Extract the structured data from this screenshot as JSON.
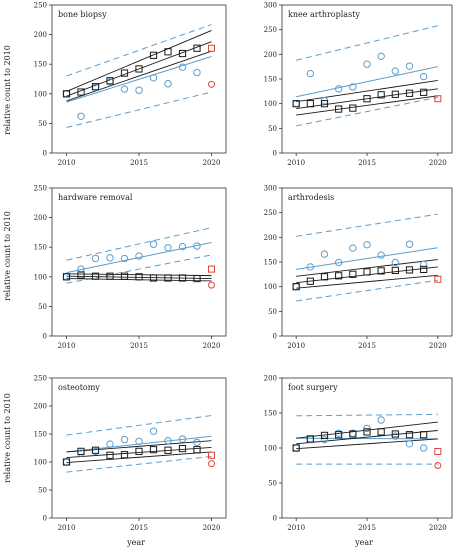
{
  "figure": {
    "ylabel": "relative count to 2010",
    "xlabel": "year"
  },
  "colors": {
    "black_series": "#1a1a1a",
    "blue_series": "#5a9ed0",
    "red_points": "#e0453c",
    "axis": "#333333"
  },
  "chart_data": [
    {
      "type": "scatter",
      "title": "bone biopsy",
      "xlim": [
        2009,
        2021
      ],
      "ylim": [
        0,
        250
      ],
      "xticks": [
        2010,
        2015,
        2020
      ],
      "yticks": [
        0,
        50,
        100,
        150,
        200,
        250
      ],
      "black_points": {
        "x": [
          2010,
          2011,
          2012,
          2013,
          2014,
          2015,
          2016,
          2017,
          2018,
          2019
        ],
        "y": [
          100,
          103,
          112,
          122,
          135,
          142,
          165,
          171,
          168,
          177
        ]
      },
      "black_fit": {
        "x": [
          2010,
          2020
        ],
        "y": [
          96,
          188
        ]
      },
      "black_ci": {
        "x": [
          2010,
          2020
        ],
        "lower": [
          88,
          172
        ],
        "upper": [
          104,
          207
        ]
      },
      "blue_points": {
        "x": [
          2010,
          2011,
          2012,
          2013,
          2014,
          2015,
          2016,
          2017,
          2018,
          2019
        ],
        "y": [
          100,
          62,
          111,
          120,
          108,
          106,
          127,
          117,
          145,
          136
        ]
      },
      "blue_fit": {
        "x": [
          2010,
          2020
        ],
        "y": [
          86,
          163
        ]
      },
      "blue_pi": {
        "x": [
          2010,
          2020
        ],
        "lower": [
          43,
          103
        ],
        "upper": [
          130,
          217
        ]
      },
      "red_points": {
        "x": [
          2020,
          2020
        ],
        "y": [
          177,
          116
        ]
      }
    },
    {
      "type": "scatter",
      "title": "knee arthroplasty",
      "xlim": [
        2009,
        2021
      ],
      "ylim": [
        0,
        300
      ],
      "xticks": [
        2010,
        2015,
        2020
      ],
      "yticks": [
        0,
        50,
        100,
        150,
        200,
        250,
        300
      ],
      "black_points": {
        "x": [
          2010,
          2011,
          2012,
          2013,
          2014,
          2015,
          2016,
          2017,
          2018,
          2019
        ],
        "y": [
          100,
          100,
          100,
          89,
          91,
          110,
          118,
          119,
          121,
          123
        ]
      },
      "black_fit": {
        "x": [
          2010,
          2020
        ],
        "y": [
          90,
          130
        ]
      },
      "black_ci": {
        "x": [
          2010,
          2020
        ],
        "lower": [
          77,
          116
        ],
        "upper": [
          104,
          147
        ]
      },
      "blue_points": {
        "x": [
          2010,
          2011,
          2012,
          2013,
          2014,
          2015,
          2016,
          2017,
          2018,
          2019
        ],
        "y": [
          100,
          161,
          106,
          130,
          134,
          180,
          196,
          166,
          176,
          155
        ]
      },
      "blue_fit": {
        "x": [
          2010,
          2020
        ],
        "y": [
          114,
          175
        ]
      },
      "blue_pi": {
        "x": [
          2010,
          2020
        ],
        "lower": [
          55,
          113
        ],
        "upper": [
          188,
          258
        ]
      },
      "red_points": {
        "x": [
          2020
        ],
        "y": [
          110
        ]
      }
    },
    {
      "type": "scatter",
      "title": "hardware removal",
      "xlim": [
        2009,
        2021
      ],
      "ylim": [
        0,
        250
      ],
      "xticks": [
        2010,
        2015,
        2020
      ],
      "yticks": [
        0,
        50,
        100,
        150,
        200,
        250
      ],
      "black_points": {
        "x": [
          2010,
          2011,
          2012,
          2013,
          2014,
          2015,
          2016,
          2017,
          2018,
          2019
        ],
        "y": [
          100,
          103,
          101,
          101,
          101,
          100,
          98,
          98,
          98,
          97
        ]
      },
      "black_fit": {
        "x": [
          2010,
          2020
        ],
        "y": [
          101,
          97
        ]
      },
      "black_ci": {
        "x": [
          2010,
          2020
        ],
        "lower": [
          97,
          93
        ],
        "upper": [
          105,
          102
        ]
      },
      "blue_points": {
        "x": [
          2010,
          2011,
          2012,
          2013,
          2014,
          2015,
          2016,
          2017,
          2018,
          2019
        ],
        "y": [
          100,
          113,
          131,
          132,
          131,
          135,
          155,
          149,
          151,
          152
        ]
      },
      "blue_fit": {
        "x": [
          2010,
          2020
        ],
        "y": [
          107,
          158
        ]
      },
      "blue_pi": {
        "x": [
          2010,
          2020
        ],
        "lower": [
          89,
          137
        ],
        "upper": [
          128,
          183
        ]
      },
      "red_points": {
        "x": [
          2020,
          2020
        ],
        "y": [
          113,
          86
        ]
      }
    },
    {
      "type": "scatter",
      "title": "arthrodesis",
      "xlim": [
        2009,
        2021
      ],
      "ylim": [
        0,
        300
      ],
      "xticks": [
        2010,
        2015,
        2020
      ],
      "yticks": [
        0,
        50,
        100,
        150,
        200,
        250,
        300
      ],
      "black_points": {
        "x": [
          2010,
          2011,
          2012,
          2013,
          2014,
          2015,
          2016,
          2017,
          2018,
          2019
        ],
        "y": [
          100,
          111,
          120,
          122,
          125,
          130,
          132,
          133,
          134,
          135
        ]
      },
      "black_fit": {
        "x": [
          2010,
          2020
        ],
        "y": [
          108,
          140
        ]
      },
      "black_ci": {
        "x": [
          2010,
          2020
        ],
        "lower": [
          97,
          123
        ],
        "upper": [
          121,
          155
        ]
      },
      "blue_points": {
        "x": [
          2010,
          2011,
          2012,
          2013,
          2014,
          2015,
          2016,
          2017,
          2018,
          2019
        ],
        "y": [
          100,
          140,
          166,
          149,
          178,
          185,
          164,
          149,
          186,
          145
        ]
      },
      "blue_fit": {
        "x": [
          2010,
          2020
        ],
        "y": [
          135,
          179
        ]
      },
      "blue_pi": {
        "x": [
          2010,
          2020
        ],
        "lower": [
          71,
          113
        ],
        "upper": [
          202,
          247
        ]
      },
      "red_points": {
        "x": [
          2020
        ],
        "y": [
          115
        ]
      }
    },
    {
      "type": "scatter",
      "title": "osteotomy",
      "xlim": [
        2009,
        2021
      ],
      "ylim": [
        0,
        250
      ],
      "xticks": [
        2010,
        2015,
        2020
      ],
      "yticks": [
        0,
        50,
        100,
        150,
        200,
        250
      ],
      "black_points": {
        "x": [
          2010,
          2011,
          2012,
          2013,
          2014,
          2015,
          2016,
          2017,
          2018,
          2019
        ],
        "y": [
          100,
          119,
          121,
          112,
          113,
          119,
          122,
          121,
          124,
          122
        ]
      },
      "black_fit": {
        "x": [
          2010,
          2020
        ],
        "y": [
          108,
          126
        ]
      },
      "black_ci": {
        "x": [
          2010,
          2020
        ],
        "lower": [
          99,
          118
        ],
        "upper": [
          118,
          138
        ]
      },
      "blue_points": {
        "x": [
          2010,
          2011,
          2012,
          2013,
          2014,
          2015,
          2016,
          2017,
          2018,
          2019
        ],
        "y": [
          100,
          116,
          119,
          132,
          140,
          137,
          155,
          138,
          141,
          135
        ]
      },
      "blue_fit": {
        "x": [
          2010,
          2020
        ],
        "y": [
          118,
          146
        ]
      },
      "blue_pi": {
        "x": [
          2010,
          2020
        ],
        "lower": [
          82,
          110
        ],
        "upper": [
          148,
          183
        ]
      },
      "red_points": {
        "x": [
          2020,
          2020
        ],
        "y": [
          112,
          97
        ]
      }
    },
    {
      "type": "scatter",
      "title": "foot surgery",
      "xlim": [
        2009,
        2021
      ],
      "ylim": [
        0,
        200
      ],
      "xticks": [
        2010,
        2015,
        2020
      ],
      "yticks": [
        0,
        50,
        100,
        150,
        200
      ],
      "black_points": {
        "x": [
          2010,
          2011,
          2012,
          2013,
          2014,
          2015,
          2016,
          2017,
          2018,
          2019
        ],
        "y": [
          100,
          113,
          118,
          119,
          120,
          123,
          123,
          120,
          119,
          119
        ]
      },
      "black_fit": {
        "x": [
          2010,
          2020
        ],
        "y": [
          106,
          125
        ]
      },
      "black_ci": {
        "x": [
          2010,
          2020
        ],
        "lower": [
          99,
          113
        ],
        "upper": [
          114,
          137
        ]
      },
      "blue_points": {
        "x": [
          2010,
          2011,
          2012,
          2013,
          2014,
          2015,
          2016,
          2017,
          2018,
          2019
        ],
        "y": [
          100,
          112,
          112,
          121,
          121,
          128,
          140,
          117,
          106,
          100
        ]
      },
      "blue_fit": {
        "x": [
          2010,
          2020
        ],
        "y": [
          114,
          113
        ]
      },
      "blue_pi": {
        "x": [
          2010,
          2020
        ],
        "lower": [
          77,
          77
        ],
        "upper": [
          146,
          148
        ]
      },
      "red_points": {
        "x": [
          2020,
          2020
        ],
        "y": [
          95,
          75
        ]
      }
    }
  ]
}
